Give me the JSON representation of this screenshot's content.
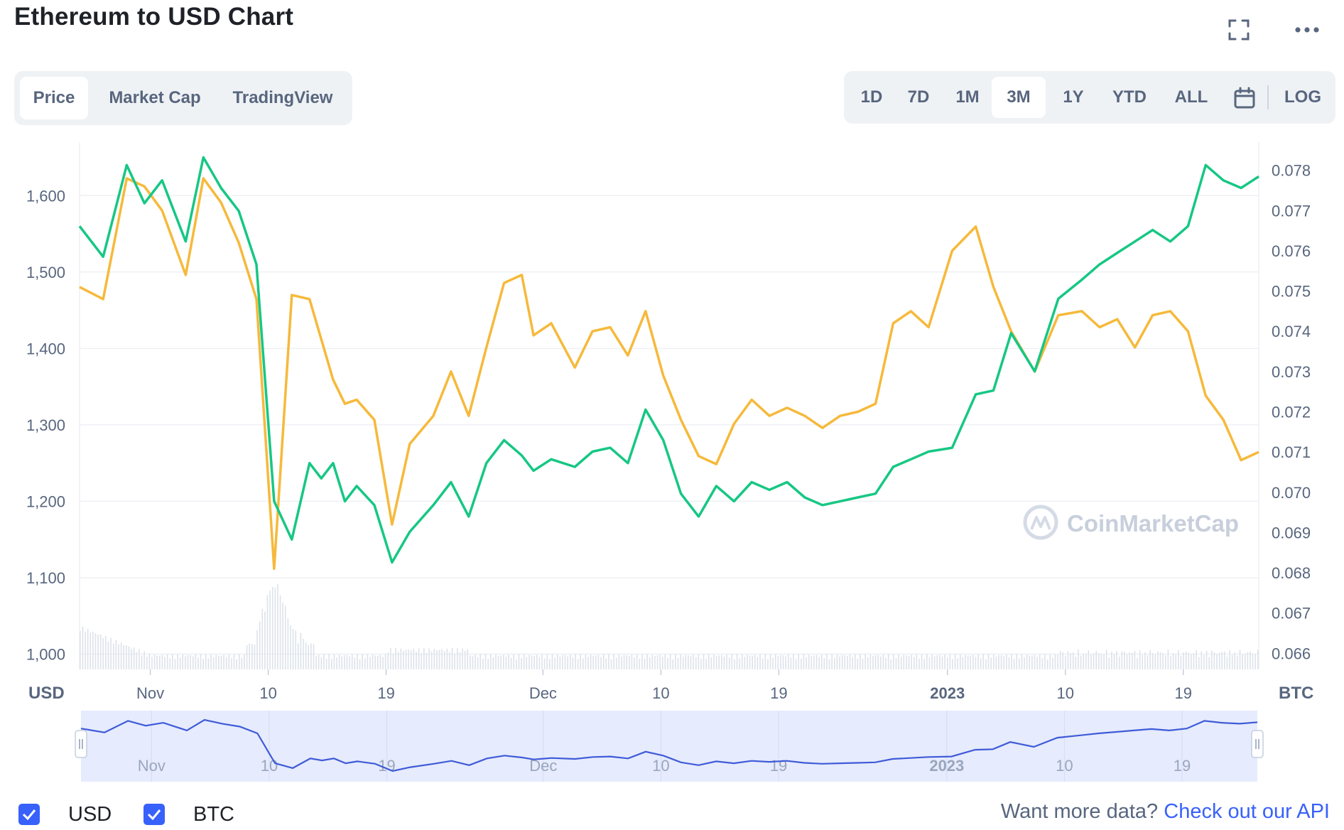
{
  "header": {
    "title": "Ethereum to USD Chart"
  },
  "icons": {
    "fullscreen": "fullscreen-icon",
    "more": "more-icon",
    "calendar": "calendar-icon",
    "watermark": "coinmarketcap-logo-icon"
  },
  "tabs": [
    {
      "label": "Price",
      "active": true
    },
    {
      "label": "Market Cap",
      "active": false
    },
    {
      "label": "TradingView",
      "active": false
    }
  ],
  "ranges": [
    {
      "label": "1D",
      "active": false
    },
    {
      "label": "7D",
      "active": false
    },
    {
      "label": "1M",
      "active": false
    },
    {
      "label": "3M",
      "active": true
    },
    {
      "label": "1Y",
      "active": false
    },
    {
      "label": "YTD",
      "active": false
    },
    {
      "label": "ALL",
      "active": false
    }
  ],
  "log_label": "LOG",
  "watermark": "CoinMarketCap",
  "legend": [
    {
      "label": "USD",
      "checked": true
    },
    {
      "label": "BTC",
      "checked": true
    }
  ],
  "footer": {
    "prompt": "Want more data?",
    "link": "Check out our API"
  },
  "colors": {
    "usd_line": "#16c784",
    "btc_line": "#f6b93b",
    "accent": "#3861fb",
    "navigator_fill": "#e6ebfd",
    "navigator_line": "#3f5bd8"
  },
  "chart_data": {
    "type": "line",
    "title": "Ethereum to USD Chart",
    "left_axis_label": "USD",
    "right_axis_label": "BTC",
    "left_axis_ticks": [
      "1,000",
      "1,100",
      "1,200",
      "1,300",
      "1,400",
      "1,500",
      "1,600"
    ],
    "right_axis_ticks": [
      "0.066",
      "0.067",
      "0.068",
      "0.069",
      "0.070",
      "0.071",
      "0.072",
      "0.073",
      "0.074",
      "0.075",
      "0.076",
      "0.077",
      "0.078"
    ],
    "x_ticks": [
      "Nov",
      "10",
      "19",
      "Dec",
      "10",
      "19",
      "2023",
      "10",
      "19"
    ],
    "ylim_left": [
      980,
      1670
    ],
    "ylim_right": [
      0.0656,
      0.0787
    ],
    "grid": true,
    "x": [
      0,
      0.02,
      0.04,
      0.055,
      0.07,
      0.09,
      0.105,
      0.12,
      0.135,
      0.15,
      0.165,
      0.18,
      0.195,
      0.205,
      0.215,
      0.225,
      0.235,
      0.25,
      0.265,
      0.28,
      0.3,
      0.315,
      0.33,
      0.345,
      0.36,
      0.375,
      0.385,
      0.4,
      0.42,
      0.435,
      0.45,
      0.465,
      0.48,
      0.495,
      0.51,
      0.525,
      0.54,
      0.555,
      0.57,
      0.585,
      0.6,
      0.615,
      0.63,
      0.645,
      0.66,
      0.675,
      0.69,
      0.705,
      0.72,
      0.74,
      0.76,
      0.775,
      0.79,
      0.81,
      0.83,
      0.85,
      0.865,
      0.88,
      0.895,
      0.91,
      0.925,
      0.94,
      0.955,
      0.97,
      0.985,
      1.0
    ],
    "series": [
      {
        "name": "USD",
        "values": [
          1560,
          1520,
          1640,
          1590,
          1620,
          1540,
          1650,
          1610,
          1580,
          1510,
          1200,
          1150,
          1250,
          1230,
          1250,
          1200,
          1220,
          1195,
          1120,
          1160,
          1195,
          1225,
          1180,
          1250,
          1280,
          1260,
          1240,
          1255,
          1245,
          1265,
          1270,
          1250,
          1320,
          1280,
          1210,
          1180,
          1220,
          1200,
          1225,
          1215,
          1225,
          1205,
          1195,
          1200,
          1205,
          1210,
          1245,
          1255,
          1265,
          1270,
          1340,
          1345,
          1420,
          1370,
          1465,
          1490,
          1510,
          1525,
          1540,
          1555,
          1540,
          1560,
          1640,
          1620,
          1610,
          1625
        ]
      },
      {
        "name": "BTC",
        "values": [
          0.0751,
          0.0748,
          0.0778,
          0.0776,
          0.077,
          0.0754,
          0.0778,
          0.0772,
          0.0762,
          0.0748,
          0.0681,
          0.0749,
          0.0748,
          0.0738,
          0.0728,
          0.0722,
          0.0723,
          0.0718,
          0.0692,
          0.0712,
          0.0719,
          0.073,
          0.0719,
          0.0736,
          0.0752,
          0.0754,
          0.0739,
          0.0742,
          0.0731,
          0.074,
          0.0741,
          0.0734,
          0.0745,
          0.0729,
          0.0718,
          0.0709,
          0.0707,
          0.0717,
          0.0723,
          0.0719,
          0.0721,
          0.0719,
          0.0716,
          0.0719,
          0.072,
          0.0722,
          0.0742,
          0.0745,
          0.0741,
          0.076,
          0.0766,
          0.0751,
          0.074,
          0.073,
          0.0744,
          0.0745,
          0.0741,
          0.0743,
          0.0736,
          0.0744,
          0.0745,
          0.074,
          0.0724,
          0.0718,
          0.0708,
          0.071
        ]
      }
    ]
  }
}
